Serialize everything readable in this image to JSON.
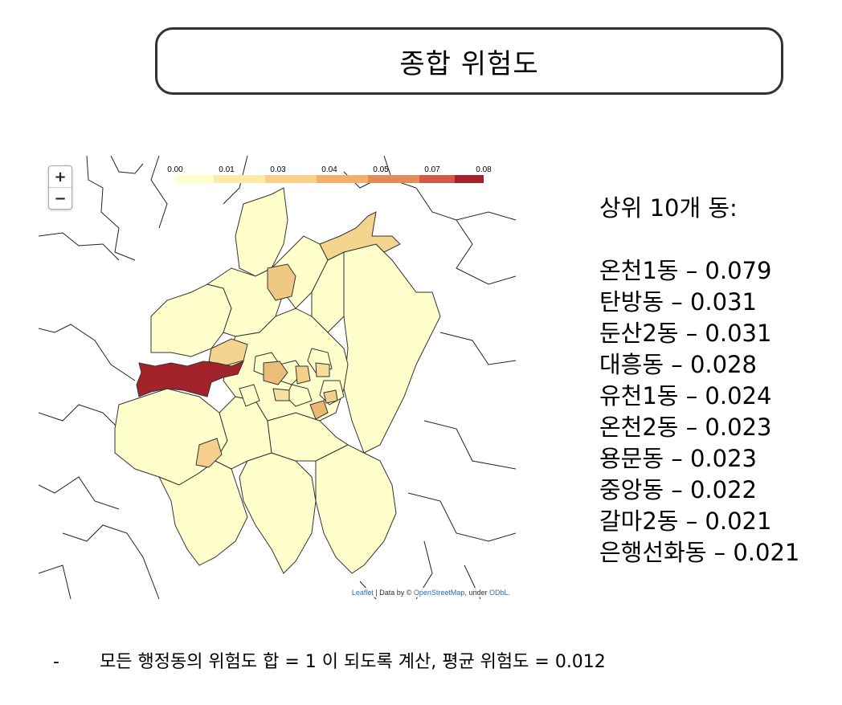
{
  "title": "종합 위험도",
  "map": {
    "zoom_in": "+",
    "zoom_out": "−",
    "legend": {
      "ticks": [
        "0.00",
        "0.01",
        "0.03",
        "0.04",
        "0.05",
        "0.07",
        "0.08"
      ],
      "colors": [
        "#ffffcc",
        "#fee9a8",
        "#f8d08a",
        "#f1b06c",
        "#e48b5a",
        "#cf5a4a",
        "#a3232a"
      ]
    },
    "attribution": {
      "leaflet": "Leaflet",
      "data_by": "| Data by ©",
      "osm": "OpenStreetMap",
      "under": ", under",
      "odbl": "ODbL."
    },
    "colors": {
      "lowest": "#ffffcc",
      "low": "#fbe6a6",
      "mid": "#f4cf86",
      "midhigh": "#edbb78",
      "highest": "#a3232a",
      "boundary": "#333333"
    }
  },
  "ranking": {
    "heading": "상위 10개 동:",
    "items": [
      "온천1동 – 0.079",
      "탄방동 – 0.031",
      "둔산2동 – 0.031",
      "대흥동 – 0.028",
      "유천1동 – 0.024",
      "온천2동 – 0.023",
      "용문동 – 0.023",
      "중앙동 – 0.022",
      "갈마2동 – 0.021",
      "은행선화동 – 0.021"
    ]
  },
  "footnote": {
    "dash": "-",
    "text": "모든 행정동의 위험도 합 = 1 이 되도록 계산, 평균 위험도 = 0.012"
  }
}
